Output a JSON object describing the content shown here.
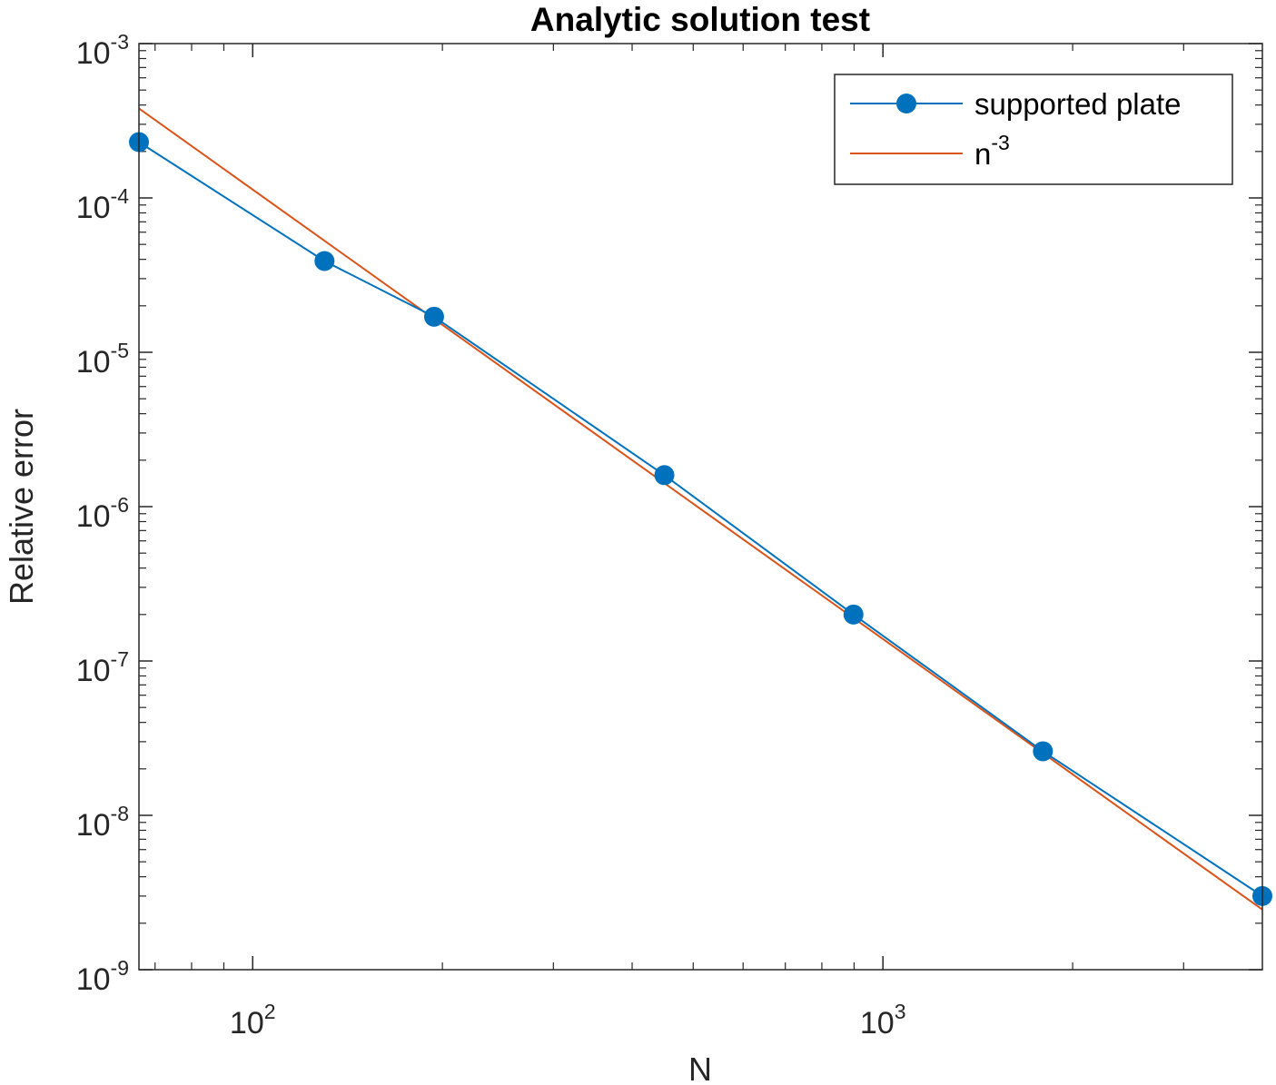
{
  "chart_data": {
    "type": "line",
    "title": "Analytic solution test",
    "xlabel": "N",
    "ylabel": "Relative error",
    "x_scale": "log",
    "y_scale": "log",
    "xlim": [
      66,
      4000
    ],
    "ylim": [
      1e-09,
      0.001
    ],
    "grid": false,
    "legend_position": "top-right",
    "x_ticks": [
      {
        "value": 100,
        "base": "10",
        "exp": "2"
      },
      {
        "value": 1000,
        "base": "10",
        "exp": "3"
      }
    ],
    "y_ticks": [
      {
        "value": 0.001,
        "base": "10",
        "exp": "-3"
      },
      {
        "value": 0.0001,
        "base": "10",
        "exp": "-4"
      },
      {
        "value": 1e-05,
        "base": "10",
        "exp": "-5"
      },
      {
        "value": 1e-06,
        "base": "10",
        "exp": "-6"
      },
      {
        "value": 1e-07,
        "base": "10",
        "exp": "-7"
      },
      {
        "value": 1e-08,
        "base": "10",
        "exp": "-8"
      },
      {
        "value": 1e-09,
        "base": "10",
        "exp": "-9"
      }
    ],
    "series": [
      {
        "name": "supported plate",
        "color": "#0072BD",
        "marker": "circle",
        "x": [
          66,
          130,
          194,
          450,
          898,
          1794,
          4000
        ],
        "y": [
          0.00023,
          3.9e-05,
          1.7e-05,
          1.6e-06,
          2e-07,
          2.6e-08,
          3e-09
        ]
      },
      {
        "name": "n",
        "name_sup": "-3",
        "color": "#D95319",
        "marker": "none",
        "x": [
          66,
          4000
        ],
        "y": [
          0.00038,
          2.45e-09
        ]
      }
    ]
  }
}
